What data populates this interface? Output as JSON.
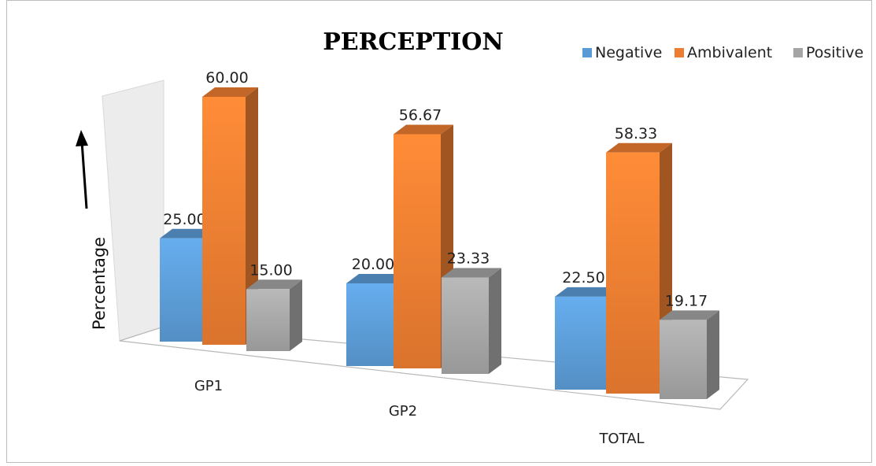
{
  "chart_data": {
    "type": "bar",
    "title": "PERCEPTION",
    "ylabel": "Percentage",
    "xlabel": "",
    "categories": [
      "GP1",
      "GP2",
      "TOTAL"
    ],
    "series": [
      {
        "name": "Negative",
        "values": [
          25.0,
          20.0,
          22.5
        ],
        "labels": [
          "25.00",
          "20.00",
          "22.50"
        ],
        "color": "#5B9BD5"
      },
      {
        "name": "Ambivalent",
        "values": [
          60.0,
          56.67,
          58.33
        ],
        "labels": [
          "60.00",
          "56.67",
          "58.33"
        ],
        "color": "#ED7D31"
      },
      {
        "name": "Positive",
        "values": [
          15.0,
          23.33,
          19.17
        ],
        "labels": [
          "15.00",
          "23.33",
          "19.17"
        ],
        "color": "#A5A5A5"
      }
    ],
    "legend": "top-right",
    "grid": false,
    "style": "3d-clustered-column"
  }
}
